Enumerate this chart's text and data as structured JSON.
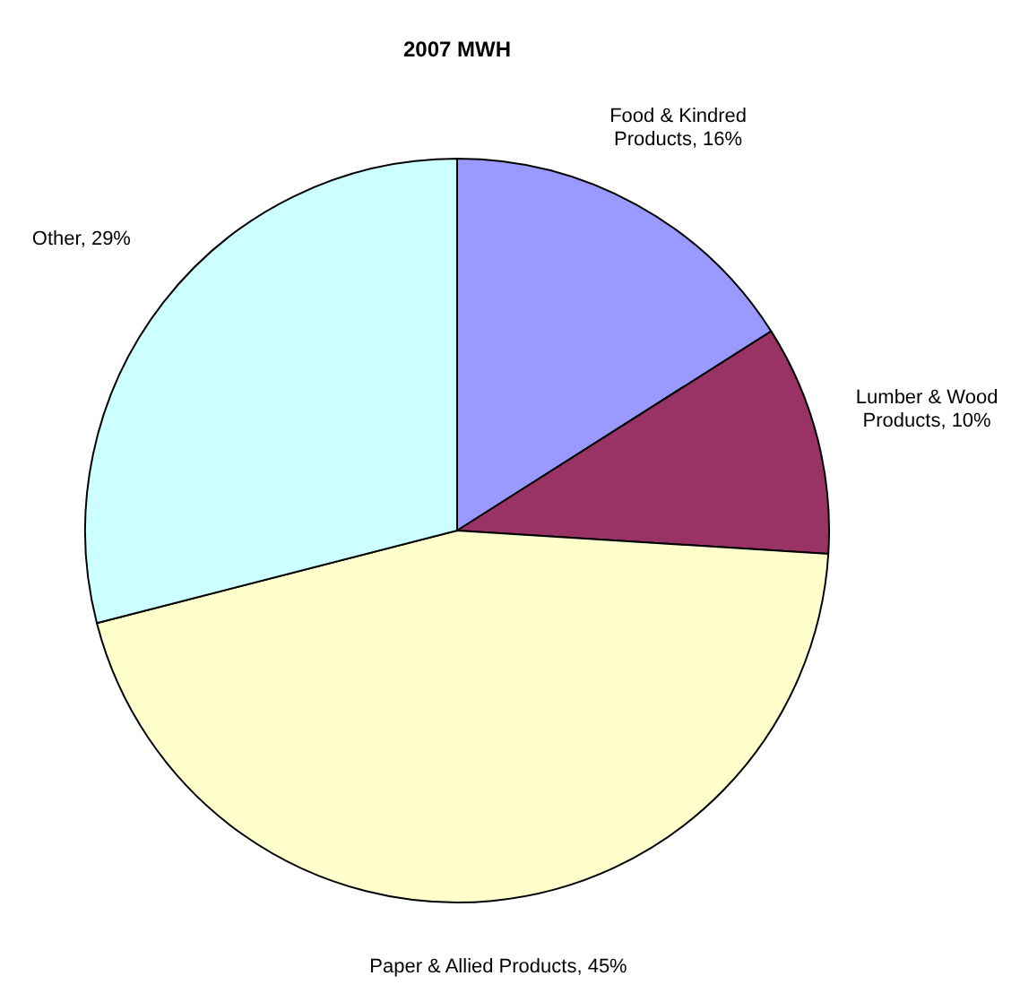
{
  "chart_data": {
    "type": "pie",
    "title": "2007 MWH",
    "categories": [
      "Food & Kindred Products",
      "Lumber & Wood Products",
      "Paper & Allied Products",
      "Other"
    ],
    "values": [
      16,
      10,
      45,
      29
    ],
    "value_labels": [
      "16%",
      "10%",
      "45%",
      "29%"
    ],
    "colors": [
      "#9999ff",
      "#993366",
      "#ffffcc",
      "#ccffff"
    ],
    "legend": false
  }
}
